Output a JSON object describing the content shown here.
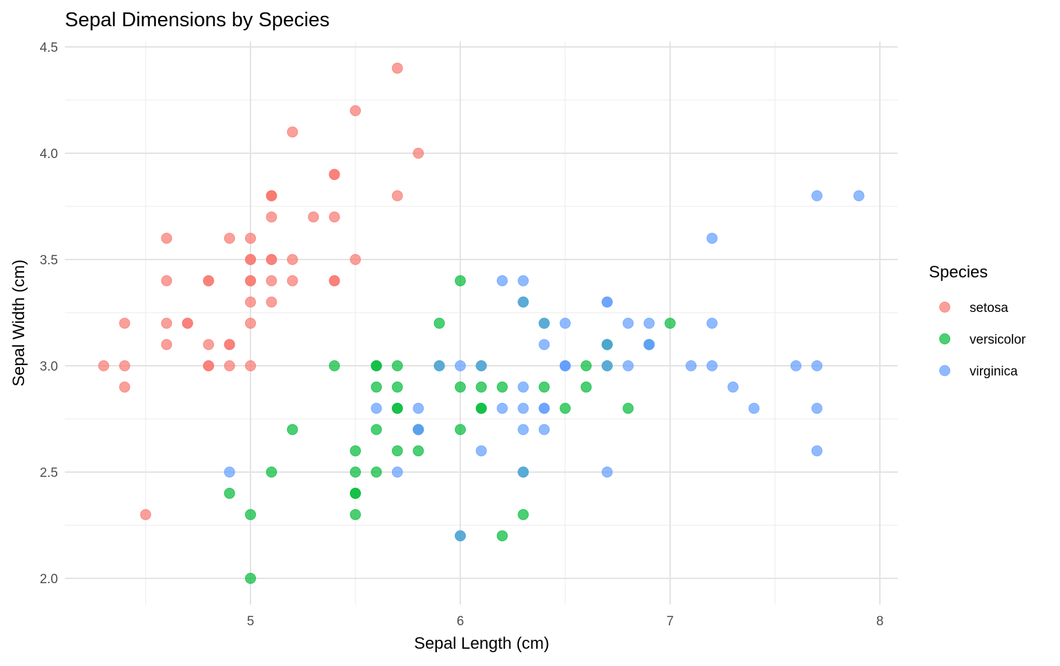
{
  "chart_data": {
    "type": "scatter",
    "title": "Sepal Dimensions by Species",
    "xlabel": "Sepal Length (cm)",
    "ylabel": "Sepal Width (cm)",
    "xlim": [
      4.12,
      8.08
    ],
    "ylim": [
      1.88,
      4.52
    ],
    "x_ticks": [
      5,
      6,
      7,
      8
    ],
    "x_tick_labels": [
      "5",
      "6",
      "7",
      "8"
    ],
    "x_minor_ticks": [
      4.5,
      5.5,
      6.5,
      7.5
    ],
    "y_ticks": [
      2.0,
      2.5,
      3.0,
      3.5,
      4.0,
      4.5
    ],
    "y_tick_labels": [
      "2.0",
      "2.5",
      "3.0",
      "3.5",
      "4.0",
      "4.5"
    ],
    "y_minor_ticks": [
      2.25,
      2.75,
      3.25,
      3.75,
      4.25
    ],
    "grid": true,
    "legend": {
      "title": "Species",
      "position": "right"
    },
    "series": [
      {
        "name": "setosa",
        "color": "#F8766D",
        "x": [
          5.1,
          4.9,
          4.7,
          4.6,
          5.0,
          5.4,
          4.6,
          5.0,
          4.4,
          4.9,
          5.4,
          4.8,
          4.8,
          4.3,
          5.8,
          5.7,
          5.4,
          5.1,
          5.7,
          5.1,
          5.4,
          5.1,
          4.6,
          5.1,
          4.8,
          5.0,
          5.0,
          5.2,
          5.2,
          4.7,
          4.8,
          5.4,
          5.2,
          5.5,
          4.9,
          5.0,
          5.5,
          4.9,
          4.4,
          5.1,
          5.0,
          4.5,
          4.4,
          5.0,
          5.1,
          4.8,
          5.1,
          4.6,
          5.3,
          5.0
        ],
        "y": [
          3.5,
          3.0,
          3.2,
          3.1,
          3.6,
          3.9,
          3.4,
          3.4,
          2.9,
          3.1,
          3.7,
          3.4,
          3.0,
          3.0,
          4.0,
          4.4,
          3.9,
          3.5,
          3.8,
          3.8,
          3.4,
          3.7,
          3.6,
          3.3,
          3.4,
          3.0,
          3.4,
          3.5,
          3.4,
          3.2,
          3.1,
          3.4,
          4.1,
          4.2,
          3.1,
          3.2,
          3.5,
          3.6,
          3.0,
          3.4,
          3.5,
          2.3,
          3.2,
          3.5,
          3.8,
          3.0,
          3.8,
          3.2,
          3.7,
          3.3
        ]
      },
      {
        "name": "versicolor",
        "color": "#00BA38",
        "x": [
          7.0,
          6.4,
          6.9,
          5.5,
          6.5,
          5.7,
          6.3,
          4.9,
          6.6,
          5.2,
          5.0,
          5.9,
          6.0,
          6.1,
          5.6,
          6.7,
          5.6,
          5.8,
          6.2,
          5.6,
          5.9,
          6.1,
          6.3,
          6.1,
          6.4,
          6.6,
          6.8,
          6.7,
          6.0,
          5.7,
          5.5,
          5.5,
          5.8,
          6.0,
          5.4,
          6.0,
          6.7,
          6.3,
          5.6,
          5.5,
          5.5,
          6.1,
          5.8,
          5.0,
          5.6,
          5.7,
          5.7,
          6.2,
          5.1,
          5.7
        ],
        "y": [
          3.2,
          3.2,
          3.1,
          2.3,
          2.8,
          2.8,
          3.3,
          2.4,
          2.9,
          2.7,
          2.0,
          3.0,
          2.2,
          2.9,
          2.9,
          3.1,
          3.0,
          2.7,
          2.2,
          2.5,
          3.2,
          2.8,
          2.5,
          2.8,
          2.9,
          3.0,
          2.8,
          3.0,
          2.9,
          2.6,
          2.4,
          2.4,
          2.7,
          2.7,
          3.0,
          3.4,
          3.1,
          2.3,
          3.0,
          2.5,
          2.6,
          3.0,
          2.6,
          2.3,
          2.7,
          3.0,
          2.9,
          2.9,
          2.5,
          2.8
        ]
      },
      {
        "name": "virginica",
        "color": "#619CFF",
        "x": [
          6.3,
          5.8,
          7.1,
          6.3,
          6.5,
          7.6,
          4.9,
          7.3,
          6.7,
          7.2,
          6.5,
          6.4,
          6.8,
          5.7,
          5.8,
          6.4,
          6.5,
          7.7,
          7.7,
          6.0,
          6.9,
          5.6,
          7.7,
          6.3,
          6.7,
          7.2,
          6.2,
          6.1,
          6.4,
          7.2,
          7.4,
          7.9,
          6.4,
          6.3,
          6.1,
          7.7,
          6.3,
          6.4,
          6.0,
          6.9,
          6.7,
          6.9,
          5.8,
          6.8,
          6.7,
          6.7,
          6.3,
          6.5,
          6.2,
          5.9
        ],
        "y": [
          3.3,
          2.7,
          3.0,
          2.9,
          3.0,
          3.0,
          2.5,
          2.9,
          2.5,
          3.6,
          3.2,
          2.7,
          3.0,
          2.5,
          2.8,
          3.2,
          3.0,
          3.8,
          2.6,
          2.2,
          3.2,
          2.8,
          2.8,
          2.7,
          3.3,
          3.2,
          2.8,
          3.0,
          2.8,
          3.0,
          2.8,
          3.8,
          2.8,
          2.8,
          2.6,
          3.0,
          3.4,
          3.1,
          3.0,
          3.1,
          3.1,
          3.1,
          2.7,
          3.2,
          3.3,
          3.0,
          2.5,
          3.0,
          3.4,
          3.0
        ]
      }
    ]
  }
}
